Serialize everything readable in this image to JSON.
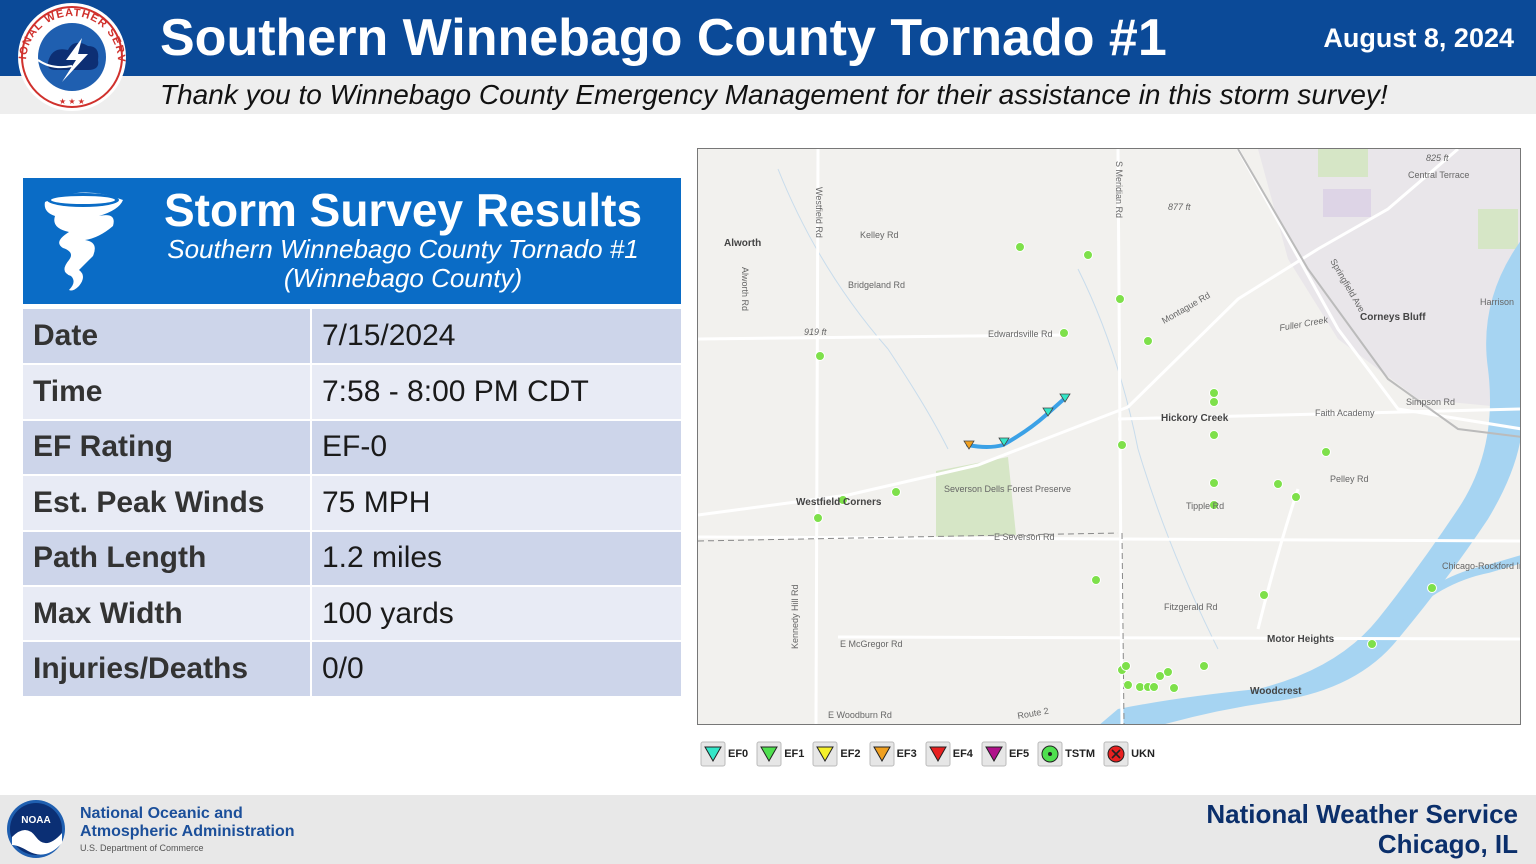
{
  "header": {
    "title": "Southern Winnebago County Tornado #1",
    "date": "August 8, 2024",
    "thanks": "Thank you to Winnebago County Emergency Management for their assistance in this storm survey!",
    "logo_text": "NATIONAL WEATHER SERVICE"
  },
  "results": {
    "title": "Storm Survey Results",
    "subtitle_line1": "Southern Winnebago County Tornado #1",
    "subtitle_line2": "(Winnebago County)",
    "rows": [
      {
        "label": "Date",
        "value": "7/15/2024"
      },
      {
        "label": "Time",
        "value": "7:58 - 8:00 PM CDT"
      },
      {
        "label": "EF Rating",
        "value": "EF-0"
      },
      {
        "label": "Est. Peak Winds",
        "value": "75 MPH"
      },
      {
        "label": "Path Length",
        "value": "1.2 miles"
      },
      {
        "label": "Max Width",
        "value": "100 yards"
      },
      {
        "label": "Injuries/Deaths",
        "value": "0/0"
      }
    ]
  },
  "map": {
    "place_labels": [
      "Alworth",
      "Hickory Creek",
      "Corneys Bluff",
      "Westfield Corners",
      "Motor Heights",
      "Woodcrest",
      "Central Terrace",
      "Harrison",
      "Faith Academy",
      "Severson Dells Forest Preserve",
      "Chicago-Rockford International Airport"
    ],
    "road_labels": [
      "Kelley Rd",
      "Bridgeland Rd",
      "Edwardsville Rd",
      "Montague Rd",
      "Simpson Rd",
      "Pelley Rd",
      "E Severson Rd",
      "Fitzgerald Rd",
      "E McGregor Rd",
      "E Woodburn Rd",
      "Westfield Rd",
      "S Meridian Rd",
      "Alworth Rd",
      "Tipple Rd",
      "Springfield Ave",
      "Route 2",
      "Kennedy Hill Rd",
      "Fuller Creek"
    ],
    "elevation_labels": [
      "825 ft",
      "877 ft",
      "919 ft"
    ],
    "colors": {
      "land": "#f2f1ee",
      "water": "#a6d4f2",
      "park": "#d6e6c6",
      "track": "#3ba1e6",
      "report": "#7ee04a"
    }
  },
  "legend": [
    {
      "label": "EF0",
      "color": "#33e6c8",
      "shape": "triangle"
    },
    {
      "label": "EF1",
      "color": "#4fe04f",
      "shape": "triangle"
    },
    {
      "label": "EF2",
      "color": "#f5f02a",
      "shape": "triangle"
    },
    {
      "label": "EF3",
      "color": "#f0a020",
      "shape": "triangle"
    },
    {
      "label": "EF4",
      "color": "#e82020",
      "shape": "triangle"
    },
    {
      "label": "EF5",
      "color": "#b0108a",
      "shape": "triangle"
    },
    {
      "label": "TSTM",
      "color": "#4fe04f",
      "shape": "dot"
    },
    {
      "label": "UKN",
      "color": "#e82020",
      "shape": "x"
    }
  ],
  "footer": {
    "noaa_name_line1": "National Oceanic and",
    "noaa_name_line2": "Atmospheric Administration",
    "noaa_dept": "U.S. Department of Commerce",
    "noaa_badge": "NOAA",
    "nws_name": "National Weather Service",
    "nws_city": "Chicago, IL"
  }
}
